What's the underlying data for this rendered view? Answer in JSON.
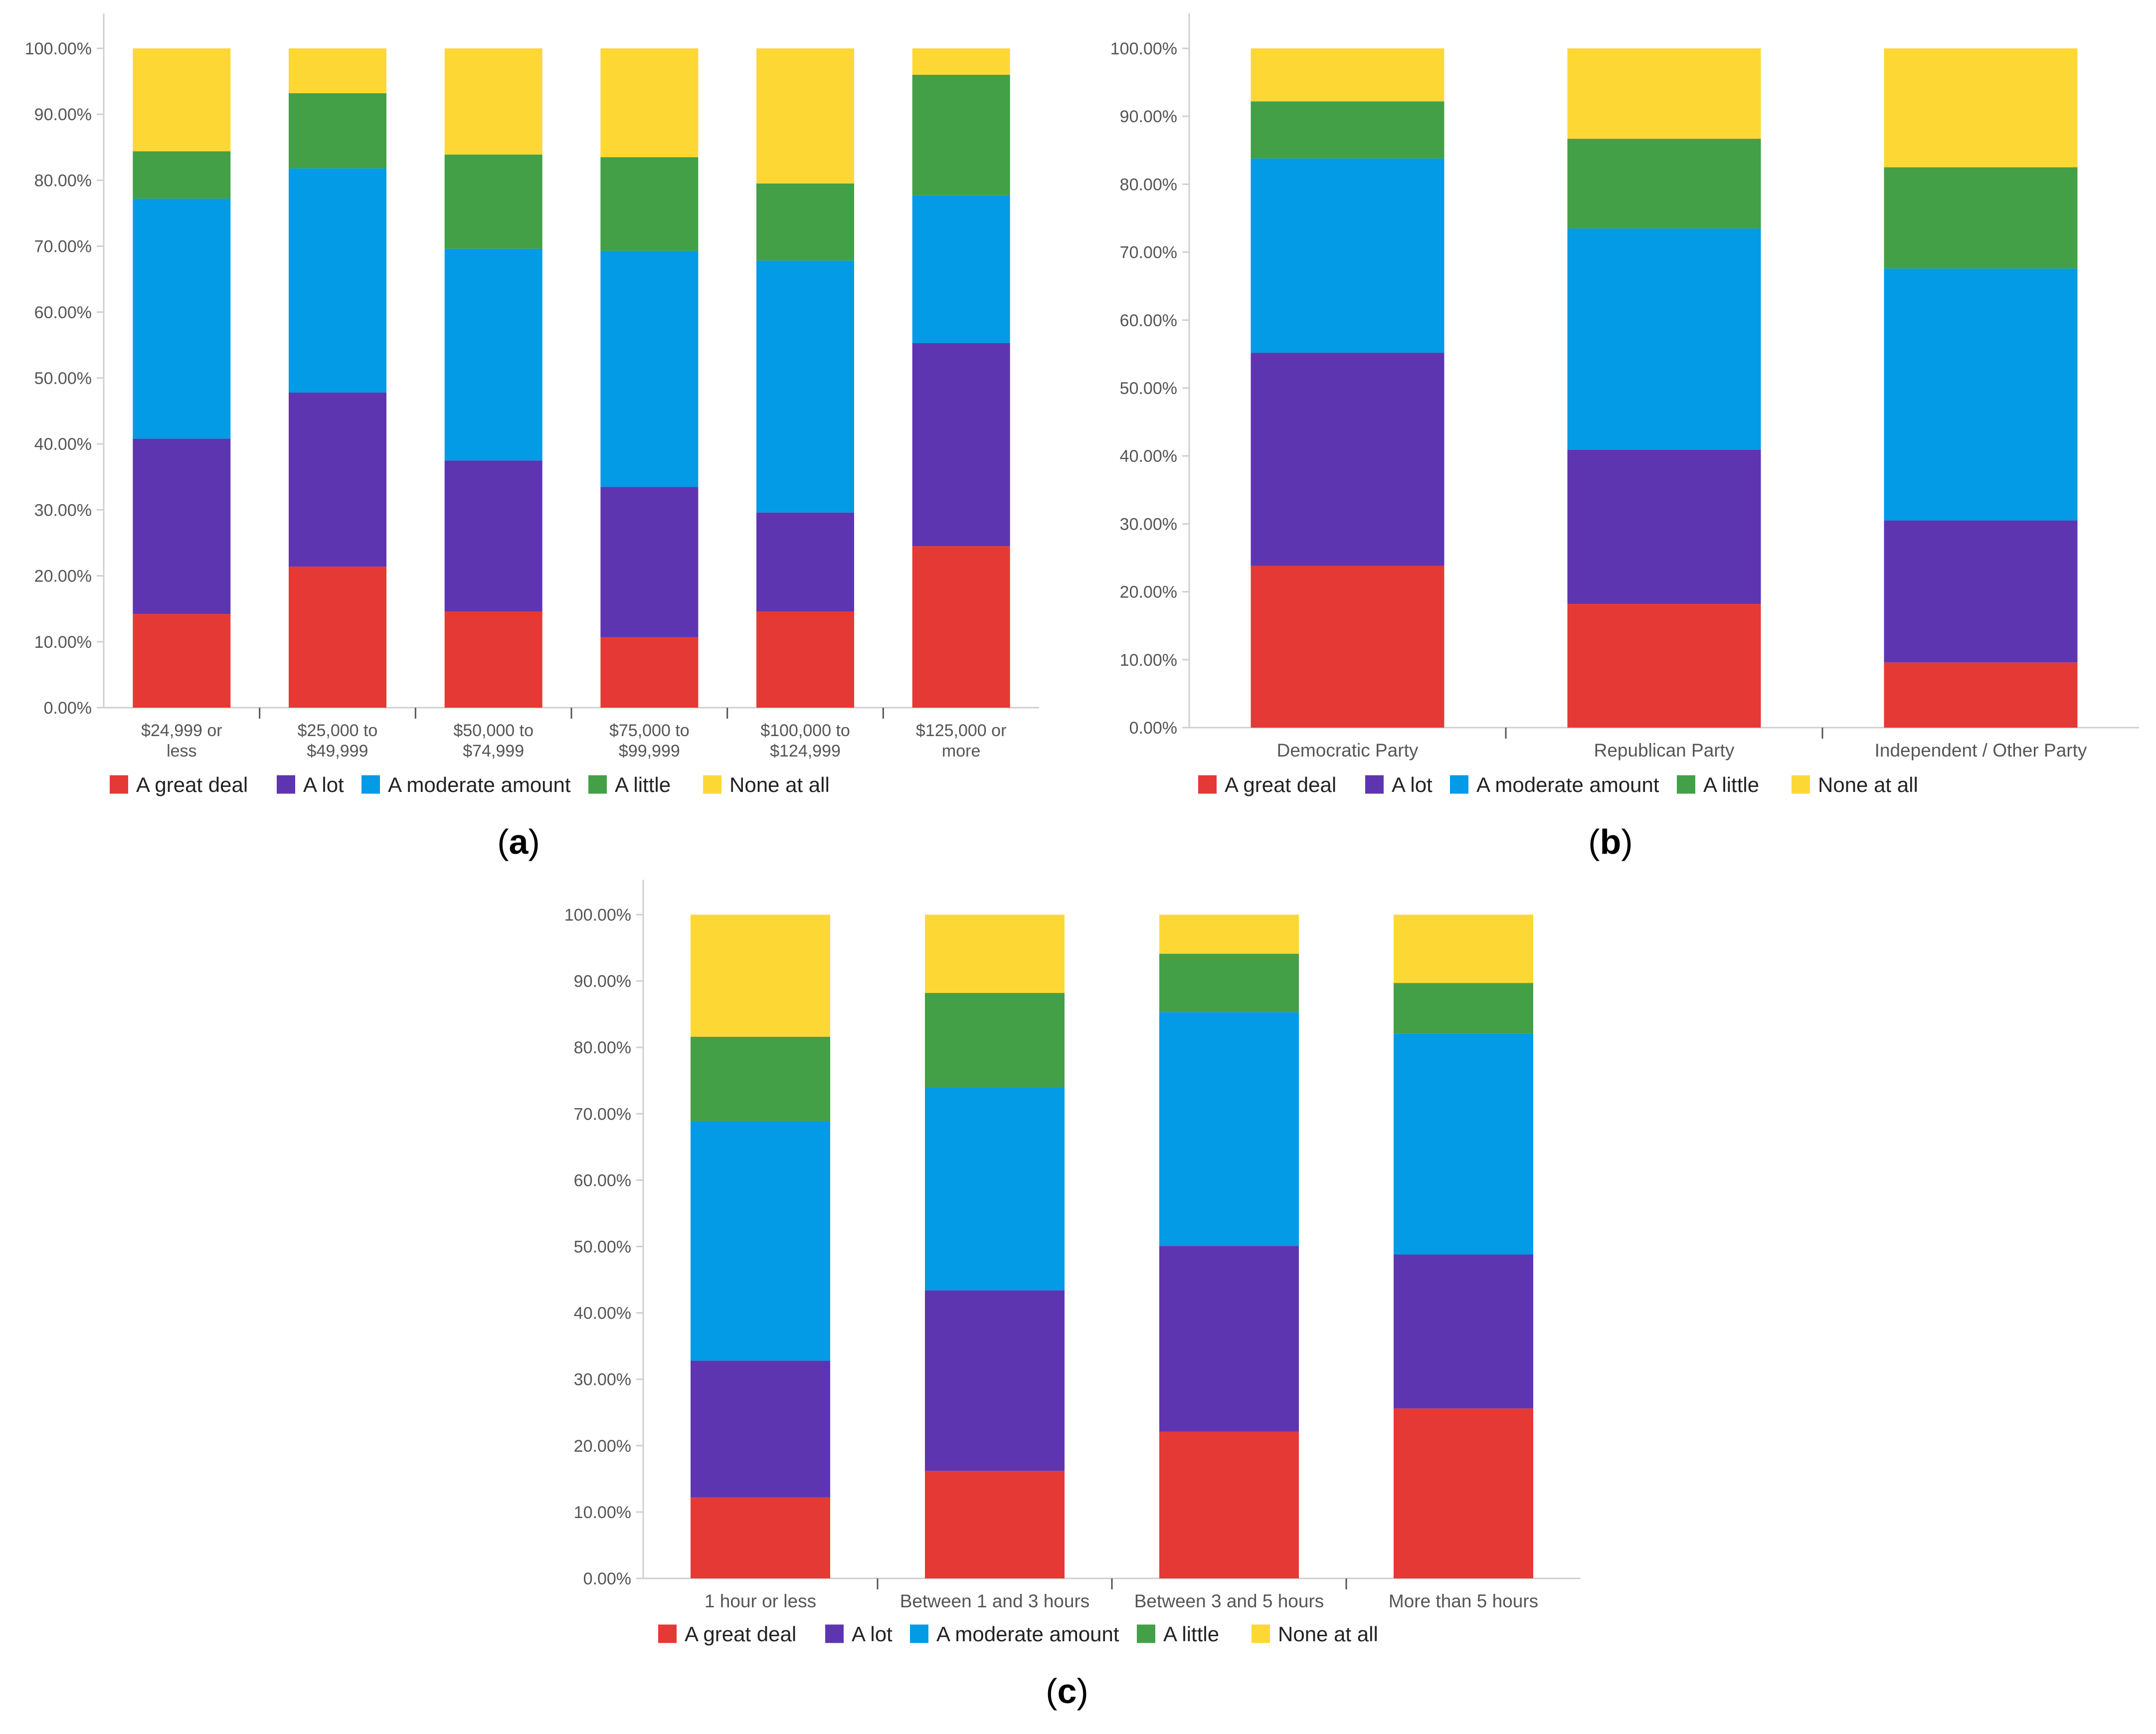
{
  "series_colors": {
    "A great deal": "#e53935",
    "A lot": "#5e35b1",
    "A moderate amount": "#039be5",
    "A little": "#43a047",
    "None at all": "#fdd835"
  },
  "chart_data": [
    {
      "id": "a",
      "panel_label": "a",
      "type": "bar",
      "stacked": true,
      "title": "",
      "xlabel": "",
      "ylabel": "",
      "ylim": [
        0,
        100
      ],
      "y_ticks": [
        "0.00%",
        "10.00%",
        "20.00%",
        "30.00%",
        "40.00%",
        "50.00%",
        "60.00%",
        "70.00%",
        "80.00%",
        "90.00%",
        "100.00%"
      ],
      "categories": [
        [
          "$24,999 or",
          "less"
        ],
        [
          "$25,000 to",
          "$49,999"
        ],
        [
          "$50,000 to",
          "$74,999"
        ],
        [
          "$75,000 to",
          "$99,999"
        ],
        [
          "$100,000 to",
          "$124,999"
        ],
        [
          "$125,000 or",
          "more"
        ]
      ],
      "series": [
        {
          "name": "A great deal",
          "values": [
            14.2,
            21.4,
            14.6,
            10.7,
            14.6,
            24.5
          ]
        },
        {
          "name": "A lot",
          "values": [
            26.6,
            26.4,
            22.9,
            22.8,
            15.0,
            30.8
          ]
        },
        {
          "name": "A moderate amount",
          "values": [
            36.4,
            34.0,
            32.1,
            35.8,
            38.2,
            22.4
          ]
        },
        {
          "name": "A little",
          "values": [
            7.2,
            11.4,
            14.3,
            14.2,
            11.7,
            18.3
          ]
        },
        {
          "name": "None at all",
          "values": [
            15.6,
            6.8,
            16.1,
            16.5,
            20.5,
            4.0
          ]
        }
      ],
      "legend": [
        "A great deal",
        "A lot",
        "A moderate amount",
        "A little",
        "None at all"
      ],
      "legend_position": "bottom"
    },
    {
      "id": "b",
      "panel_label": "b",
      "type": "bar",
      "stacked": true,
      "title": "",
      "xlabel": "",
      "ylabel": "",
      "ylim": [
        0,
        100
      ],
      "y_ticks": [
        "0.00%",
        "10.00%",
        "20.00%",
        "30.00%",
        "40.00%",
        "50.00%",
        "60.00%",
        "70.00%",
        "80.00%",
        "90.00%",
        "100.00%"
      ],
      "categories": [
        [
          "Democratic Party"
        ],
        [
          "Republican Party"
        ],
        [
          "Independent / Other Party"
        ]
      ],
      "series": [
        {
          "name": "A great deal",
          "values": [
            23.8,
            18.2,
            9.6
          ]
        },
        {
          "name": "A lot",
          "values": [
            31.4,
            22.7,
            20.9
          ]
        },
        {
          "name": "A moderate amount",
          "values": [
            28.6,
            32.6,
            37.1
          ]
        },
        {
          "name": "A little",
          "values": [
            8.4,
            13.2,
            14.9
          ]
        },
        {
          "name": "None at all",
          "values": [
            7.8,
            13.3,
            17.5
          ]
        }
      ],
      "legend": [
        "A great deal",
        "A lot",
        "A moderate amount",
        "A little",
        "None at all"
      ],
      "legend_position": "bottom"
    },
    {
      "id": "c",
      "panel_label": "c",
      "type": "bar",
      "stacked": true,
      "title": "",
      "xlabel": "",
      "ylabel": "",
      "ylim": [
        0,
        100
      ],
      "y_ticks": [
        "0.00%",
        "10.00%",
        "20.00%",
        "30.00%",
        "40.00%",
        "50.00%",
        "60.00%",
        "70.00%",
        "80.00%",
        "90.00%",
        "100.00%"
      ],
      "categories": [
        [
          "1 hour or less"
        ],
        [
          "Between 1 and 3 hours"
        ],
        [
          "Between 3 and 5 hours"
        ],
        [
          "More than 5 hours"
        ]
      ],
      "series": [
        {
          "name": "A great deal",
          "values": [
            12.2,
            16.2,
            22.1,
            25.6
          ]
        },
        {
          "name": "A lot",
          "values": [
            20.6,
            27.2,
            28.0,
            23.2
          ]
        },
        {
          "name": "A moderate amount",
          "values": [
            36.1,
            30.6,
            35.2,
            33.3
          ]
        },
        {
          "name": "A little",
          "values": [
            12.7,
            14.2,
            8.8,
            7.6
          ]
        },
        {
          "name": "None at all",
          "values": [
            18.4,
            11.8,
            5.9,
            10.3
          ]
        }
      ],
      "legend": [
        "A great deal",
        "A lot",
        "A moderate amount",
        "A little",
        "None at all"
      ],
      "legend_position": "bottom"
    }
  ]
}
